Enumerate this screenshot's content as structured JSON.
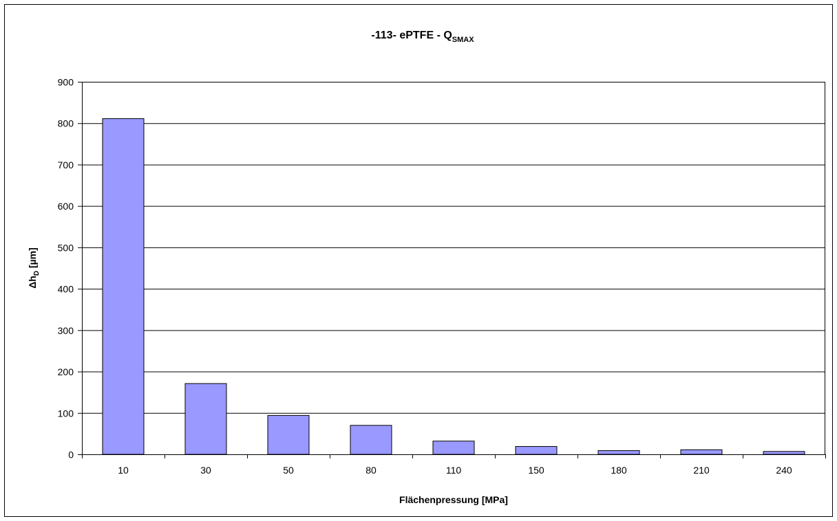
{
  "chart_data": {
    "type": "bar",
    "title": "-113- ePTFE - Q",
    "title_subscript": "SMAX",
    "xlabel": "Flächenpressung [MPa]",
    "ylabel": "Δh",
    "ylabel_subscript": "D",
    "ylabel_unit": " [µm]",
    "categories": [
      "10",
      "30",
      "50",
      "80",
      "110",
      "150",
      "180",
      "210",
      "240"
    ],
    "values": [
      811,
      171,
      94,
      70,
      32,
      19,
      9,
      11,
      7
    ],
    "ylim": [
      0,
      900
    ],
    "yticks": [
      0,
      100,
      200,
      300,
      400,
      500,
      600,
      700,
      800,
      900
    ],
    "grid": "horizontal",
    "bar_color": "#9999ff",
    "bar_edge_color": "#000000"
  }
}
